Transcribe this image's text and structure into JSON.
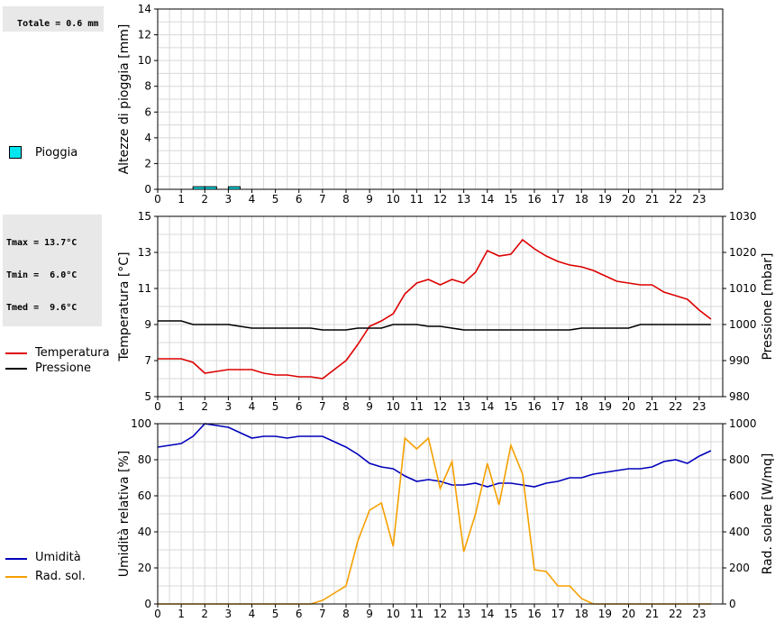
{
  "rain_total": "Totale = 0.6 mm",
  "temp_stats": {
    "tmax": "Tmax = 13.7°C",
    "tmin": "Tmin =  6.0°C",
    "tmed": "Tmed =  9.6°C"
  },
  "legends": {
    "pioggia": "Pioggia",
    "temperatura": "Temperatura",
    "pressione": "Pressione",
    "umidita": "Umidità",
    "rad_sol": "Rad. sol."
  },
  "colors": {
    "rain": "#00e5ee",
    "temperature": "#dd0000",
    "pressure": "#000000",
    "humidity": "#0000bb",
    "solar": "#f5a000",
    "grid": "#d8d8d8"
  },
  "chart_data": [
    {
      "type": "bar",
      "ylabel": "Altezze di pioggia [mm]",
      "ylim": [
        0,
        14
      ],
      "yticks": [
        0,
        2,
        4,
        6,
        8,
        10,
        12,
        14
      ],
      "xticks": [
        0,
        1,
        2,
        3,
        4,
        5,
        6,
        7,
        8,
        9,
        10,
        11,
        12,
        13,
        14,
        15,
        16,
        17,
        18,
        19,
        20,
        21,
        22,
        23
      ],
      "xlim": [
        0,
        24
      ],
      "grid": true,
      "series": [
        {
          "name": "Pioggia",
          "x": [
            1.75,
            2.25,
            3.25
          ],
          "values": [
            0.2,
            0.2,
            0.2
          ],
          "bar_width": 0.5
        }
      ]
    },
    {
      "type": "line",
      "ylabel": "Temperatura [°C]",
      "y2label": "Pressione [mbar]",
      "ylim": [
        5,
        15
      ],
      "yticks": [
        5,
        7,
        9,
        11,
        13,
        15
      ],
      "y2lim": [
        980,
        1030
      ],
      "y2ticks": [
        980,
        990,
        1000,
        1010,
        1020,
        1030
      ],
      "xticks": [
        0,
        1,
        2,
        3,
        4,
        5,
        6,
        7,
        8,
        9,
        10,
        11,
        12,
        13,
        14,
        15,
        16,
        17,
        18,
        19,
        20,
        21,
        22,
        23
      ],
      "xlim": [
        0,
        24
      ],
      "grid": true,
      "series": [
        {
          "name": "Temperatura",
          "axis": "left",
          "x": [
            0,
            0.5,
            1,
            1.5,
            2,
            2.5,
            3,
            3.5,
            4,
            4.5,
            5,
            5.5,
            6,
            6.5,
            7,
            7.5,
            8,
            8.5,
            9,
            9.5,
            10,
            10.5,
            11,
            11.5,
            12,
            12.5,
            13,
            13.5,
            14,
            14.5,
            15,
            15.5,
            16,
            16.5,
            17,
            17.5,
            18,
            18.5,
            19,
            19.5,
            20,
            20.5,
            21,
            21.5,
            22,
            22.5,
            23,
            23.5
          ],
          "values": [
            7.1,
            7.1,
            7.1,
            6.9,
            6.3,
            6.4,
            6.5,
            6.5,
            6.5,
            6.3,
            6.2,
            6.2,
            6.1,
            6.1,
            6.0,
            6.5,
            7.0,
            7.9,
            8.9,
            9.2,
            9.6,
            10.7,
            11.3,
            11.5,
            11.2,
            11.5,
            11.3,
            11.9,
            13.1,
            12.8,
            12.9,
            13.7,
            13.2,
            12.8,
            12.5,
            12.3,
            12.2,
            12.0,
            11.7,
            11.4,
            11.3,
            11.2,
            11.2,
            10.8,
            10.6,
            10.4,
            9.8,
            9.3
          ]
        },
        {
          "name": "Pressione",
          "axis": "right",
          "x": [
            0,
            1,
            1.5,
            2,
            3,
            3.5,
            4,
            5,
            6,
            6.5,
            7,
            7.5,
            8,
            8.5,
            9,
            9.5,
            10,
            10.5,
            11,
            11.5,
            12,
            12.5,
            13,
            13.5,
            14,
            15,
            16,
            17,
            17.5,
            18,
            18.5,
            19,
            20,
            20.5,
            21,
            22,
            23,
            23.5
          ],
          "values": [
            1001,
            1001,
            1000,
            1000,
            1000,
            999.5,
            999,
            999,
            999,
            999,
            998.5,
            998.5,
            998.5,
            999,
            999,
            999,
            1000,
            1000,
            1000,
            999.5,
            999.5,
            999,
            998.5,
            998.5,
            998.5,
            998.5,
            998.5,
            998.5,
            998.5,
            999,
            999,
            999,
            999,
            1000,
            1000,
            1000,
            1000,
            1000
          ]
        }
      ]
    },
    {
      "type": "line",
      "ylabel": "Umidità relativa [%]",
      "y2label": "Rad. solare [W/mq]",
      "ylim": [
        0,
        100
      ],
      "yticks": [
        0,
        20,
        40,
        60,
        80,
        100
      ],
      "y2lim": [
        0,
        1000
      ],
      "y2ticks": [
        0,
        200,
        400,
        600,
        800,
        1000
      ],
      "xticks": [
        0,
        1,
        2,
        3,
        4,
        5,
        6,
        7,
        8,
        9,
        10,
        11,
        12,
        13,
        14,
        15,
        16,
        17,
        18,
        19,
        20,
        21,
        22,
        23
      ],
      "xlim": [
        0,
        24
      ],
      "grid": true,
      "series": [
        {
          "name": "Umidità",
          "axis": "left",
          "x": [
            0,
            0.5,
            1,
            1.5,
            2,
            2.5,
            3,
            3.5,
            4,
            4.5,
            5,
            5.5,
            6,
            6.5,
            7,
            7.5,
            8,
            8.5,
            9,
            9.5,
            10,
            10.5,
            11,
            11.5,
            12,
            12.5,
            13,
            13.5,
            14,
            14.5,
            15,
            15.5,
            16,
            16.5,
            17,
            17.5,
            18,
            18.5,
            19,
            19.5,
            20,
            20.5,
            21,
            21.5,
            22,
            22.5,
            23,
            23.5
          ],
          "values": [
            87,
            88,
            89,
            93,
            100,
            99,
            98,
            95,
            92,
            93,
            93,
            92,
            93,
            93,
            93,
            90,
            87,
            83,
            78,
            76,
            75,
            71,
            68,
            69,
            68,
            66,
            66,
            67,
            65,
            67,
            67,
            66,
            65,
            67,
            68,
            70,
            70,
            72,
            73,
            74,
            75,
            75,
            76,
            79,
            80,
            78,
            82,
            85
          ]
        },
        {
          "name": "Rad. sol.",
          "axis": "right",
          "x": [
            0,
            1,
            2,
            3,
            4,
            5,
            6,
            6.5,
            7,
            7.5,
            8,
            8.5,
            9,
            9.5,
            10,
            10.5,
            11,
            11.5,
            12,
            12.5,
            13,
            13.5,
            14,
            14.5,
            15,
            15.5,
            16,
            16.5,
            17,
            17.5,
            18,
            18.5,
            19,
            20,
            21,
            22,
            23,
            23.5
          ],
          "values": [
            0,
            0,
            0,
            0,
            0,
            0,
            0,
            0,
            20,
            60,
            100,
            350,
            520,
            560,
            320,
            920,
            860,
            920,
            640,
            790,
            290,
            500,
            780,
            550,
            880,
            720,
            190,
            180,
            100,
            100,
            30,
            0,
            0,
            0,
            0,
            0,
            0,
            0
          ]
        }
      ]
    }
  ]
}
